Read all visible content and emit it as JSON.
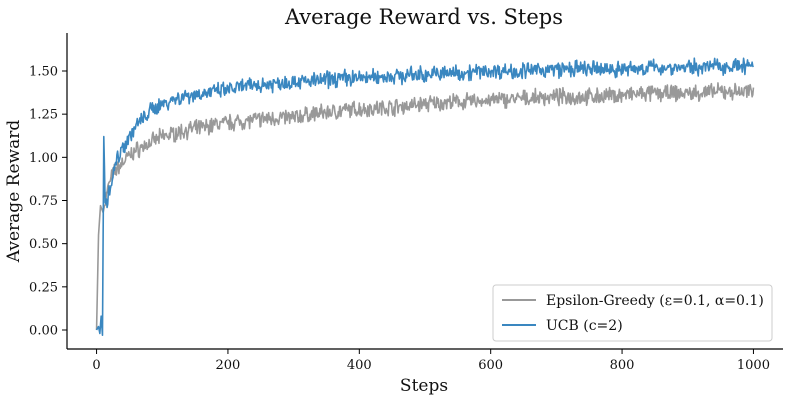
{
  "chart_data": {
    "type": "line",
    "title": "Average Reward vs. Steps",
    "xlabel": "Steps",
    "ylabel": "Average Reward",
    "xlim": [
      -45,
      1045
    ],
    "ylim": [
      -0.11,
      1.72
    ],
    "xticks": [
      0,
      200,
      400,
      600,
      800,
      1000
    ],
    "xtick_labels": [
      "0",
      "200",
      "400",
      "600",
      "800",
      "1000"
    ],
    "yticks": [
      0.0,
      0.25,
      0.5,
      0.75,
      1.0,
      1.25,
      1.5
    ],
    "ytick_labels": [
      "0.00",
      "0.25",
      "0.50",
      "0.75",
      "1.00",
      "1.25",
      "1.50"
    ],
    "grid": false,
    "legend_position": "lower-right",
    "series": [
      {
        "name": "Epsilon-Greedy (ε=0.1, α=0.1)",
        "color": "#999999",
        "points": [
          [
            0,
            0.0
          ],
          [
            3,
            0.55
          ],
          [
            6,
            0.72
          ],
          [
            10,
            0.68
          ],
          [
            15,
            0.78
          ],
          [
            20,
            0.86
          ],
          [
            25,
            0.9
          ],
          [
            30,
            0.93
          ],
          [
            40,
            0.97
          ],
          [
            50,
            1.01
          ],
          [
            60,
            1.04
          ],
          [
            70,
            1.06
          ],
          [
            80,
            1.08
          ],
          [
            90,
            1.1
          ],
          [
            100,
            1.12
          ],
          [
            120,
            1.14
          ],
          [
            140,
            1.16
          ],
          [
            160,
            1.17
          ],
          [
            180,
            1.19
          ],
          [
            200,
            1.2
          ],
          [
            225,
            1.21
          ],
          [
            250,
            1.22
          ],
          [
            275,
            1.23
          ],
          [
            300,
            1.23
          ],
          [
            325,
            1.25
          ],
          [
            350,
            1.26
          ],
          [
            375,
            1.27
          ],
          [
            400,
            1.28
          ],
          [
            450,
            1.29
          ],
          [
            500,
            1.31
          ],
          [
            550,
            1.32
          ],
          [
            600,
            1.33
          ],
          [
            650,
            1.34
          ],
          [
            700,
            1.35
          ],
          [
            750,
            1.35
          ],
          [
            800,
            1.36
          ],
          [
            850,
            1.37
          ],
          [
            900,
            1.37
          ],
          [
            950,
            1.38
          ],
          [
            1000,
            1.38
          ]
        ]
      },
      {
        "name": "UCB (c=2)",
        "color": "#3a87c0",
        "points": [
          [
            0,
            0.0
          ],
          [
            3,
            0.02
          ],
          [
            5,
            -0.02
          ],
          [
            7,
            0.08
          ],
          [
            9,
            -0.03
          ],
          [
            11,
            1.12
          ],
          [
            13,
            0.78
          ],
          [
            16,
            0.75
          ],
          [
            20,
            0.82
          ],
          [
            25,
            0.9
          ],
          [
            30,
            0.98
          ],
          [
            40,
            1.06
          ],
          [
            50,
            1.12
          ],
          [
            60,
            1.18
          ],
          [
            70,
            1.22
          ],
          [
            80,
            1.26
          ],
          [
            90,
            1.29
          ],
          [
            100,
            1.31
          ],
          [
            120,
            1.34
          ],
          [
            140,
            1.36
          ],
          [
            160,
            1.37
          ],
          [
            180,
            1.38
          ],
          [
            200,
            1.39
          ],
          [
            225,
            1.41
          ],
          [
            250,
            1.42
          ],
          [
            275,
            1.43
          ],
          [
            300,
            1.44
          ],
          [
            325,
            1.44
          ],
          [
            350,
            1.45
          ],
          [
            375,
            1.46
          ],
          [
            400,
            1.46
          ],
          [
            450,
            1.47
          ],
          [
            500,
            1.48
          ],
          [
            550,
            1.49
          ],
          [
            600,
            1.5
          ],
          [
            650,
            1.5
          ],
          [
            700,
            1.51
          ],
          [
            750,
            1.51
          ],
          [
            800,
            1.51
          ],
          [
            850,
            1.52
          ],
          [
            900,
            1.52
          ],
          [
            950,
            1.53
          ],
          [
            1000,
            1.53
          ]
        ]
      }
    ]
  }
}
